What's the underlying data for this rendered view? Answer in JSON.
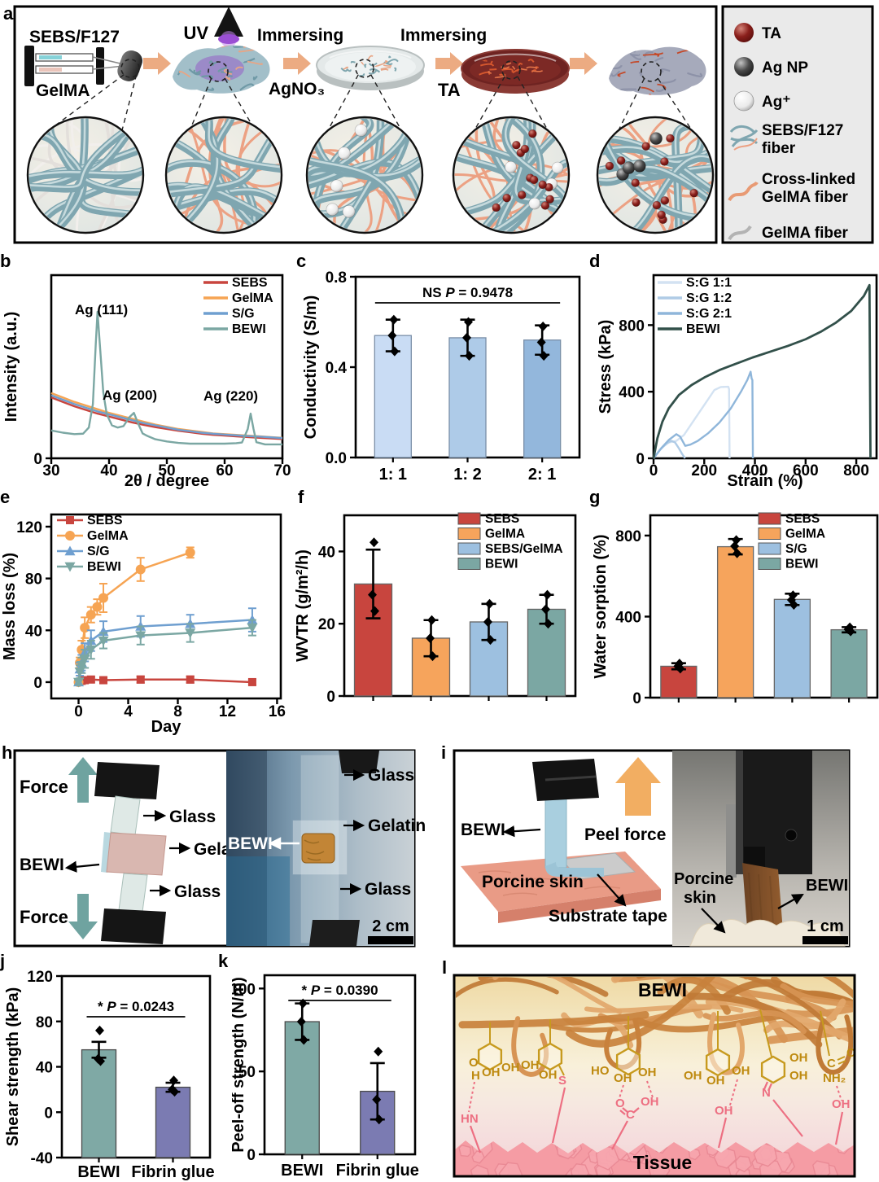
{
  "figure_labels": {
    "a": "a",
    "b": "b",
    "c": "c",
    "d": "d",
    "e": "e",
    "f": "f",
    "g": "g",
    "h": "h",
    "i": "i",
    "j": "j",
    "k": "k",
    "l": "l"
  },
  "panel_a": {
    "labels": {
      "sebs_f127": "SEBS/F127",
      "gelma": "GelMA",
      "uv": "UV",
      "immersing1": "Immersing",
      "agno3": "AgNO₃",
      "immersing2": "Immersing",
      "ta": "TA"
    },
    "legend": [
      {
        "line1": "TA",
        "line2": ""
      },
      {
        "line1": "Ag NP",
        "line2": ""
      },
      {
        "line1": "Ag⁺",
        "line2": ""
      },
      {
        "line1": "SEBS/F127",
        "line2": "fiber"
      },
      {
        "line1": "Cross-linked",
        "line2": "GelMA fiber"
      },
      {
        "line1": "GelMA fiber",
        "line2": ""
      }
    ]
  },
  "panel_h": {
    "force_top": "Force",
    "force_bottom": "Force",
    "glass_top": "Glass",
    "gelatin": "Gelatin",
    "bewi": "BEWI",
    "glass_bottom": "Glass",
    "photo": {
      "glass_top": "Glass",
      "gelatin": "Gelatin",
      "bewi": "BEWI",
      "glass_bottom": "Glass",
      "scale": "2 cm"
    }
  },
  "panel_i": {
    "bewi": "BEWI",
    "peel_force": "Peel force",
    "porcine_skin": "Porcine skin",
    "substrate_tape": "Substrate tape",
    "photo": {
      "porcine": "Porcine",
      "skin": "skin",
      "bewi": "BEWI",
      "scale": "1 cm"
    }
  },
  "panel_l": {
    "bewi": "BEWI",
    "tissue": "Tissue",
    "gold": {
      "g1o": "O",
      "g1h": "H",
      "g1oh1": "OH",
      "g1oh2": "OH",
      "g2oh1": "OH",
      "g2oh2": "OH",
      "g3ho": "HO",
      "g3oh1": "OH",
      "g3oh2": "OH",
      "g4oh1": "OH",
      "g4oh2": "OH",
      "g4oh3": "OH",
      "g5oh1": "OH",
      "g5oh2": "OH",
      "g6c": "C",
      "g6o": "O",
      "g6nh2": "NH₂"
    },
    "pink": {
      "p1": "HN",
      "p2": "S",
      "p3o": "O",
      "p3c": "C",
      "p3oh": "OH",
      "p4": "OH",
      "p5": "N",
      "p6": "OH"
    }
  },
  "chart_data": [
    {
      "id": "b",
      "type": "line",
      "xlabel": "2θ / degree",
      "ylabel": "Intensity (a.u.)",
      "xlim": [
        30,
        70
      ],
      "ylim": [
        0,
        1.25
      ],
      "xticks": [
        30,
        40,
        50,
        60,
        70
      ],
      "yticks": [
        0
      ],
      "ytick_labels": [
        "0"
      ],
      "annotations": [
        {
          "text": "Ag (111)"
        },
        {
          "text": "Ag (200)"
        },
        {
          "text": "Ag (220)"
        }
      ],
      "series": [
        {
          "name": "SEBS",
          "color": "#C8453E",
          "x": [
            30,
            32,
            34,
            36,
            38,
            40,
            42,
            44,
            46,
            48,
            50,
            52,
            54,
            56,
            58,
            60,
            62,
            64,
            66,
            68,
            70
          ],
          "y": [
            0.415,
            0.385,
            0.355,
            0.33,
            0.305,
            0.285,
            0.265,
            0.245,
            0.228,
            0.213,
            0.2,
            0.188,
            0.178,
            0.168,
            0.16,
            0.155,
            0.15,
            0.145,
            0.14,
            0.136,
            0.132
          ]
        },
        {
          "name": "GelMA",
          "color": "#F6A453",
          "x": [
            30,
            32,
            34,
            36,
            38,
            40,
            42,
            44,
            46,
            48,
            50,
            52,
            54,
            56,
            58,
            60,
            62,
            64,
            66,
            68,
            70
          ],
          "y": [
            0.445,
            0.415,
            0.385,
            0.36,
            0.335,
            0.31,
            0.29,
            0.27,
            0.25,
            0.23,
            0.215,
            0.2,
            0.19,
            0.18,
            0.17,
            0.165,
            0.16,
            0.155,
            0.15,
            0.145,
            0.14
          ]
        },
        {
          "name": "S/G",
          "color": "#6F9FD0",
          "x": [
            30,
            32,
            34,
            36,
            38,
            40,
            42,
            44,
            46,
            48,
            50,
            52,
            54,
            56,
            58,
            60,
            62,
            64,
            66,
            68,
            70
          ],
          "y": [
            0.43,
            0.4,
            0.37,
            0.345,
            0.32,
            0.3,
            0.28,
            0.26,
            0.24,
            0.225,
            0.21,
            0.195,
            0.185,
            0.175,
            0.168,
            0.162,
            0.157,
            0.152,
            0.148,
            0.143,
            0.138
          ]
        },
        {
          "name": "BEWI",
          "color": "#7BA7A3",
          "x": [
            30,
            32,
            34,
            35.5,
            36.5,
            37.2,
            37.7,
            38,
            38.4,
            39,
            39.6,
            40.5,
            41.5,
            42.5,
            43.5,
            44.3,
            45,
            45.8,
            46.5,
            48,
            50,
            52,
            54,
            56,
            58,
            60,
            62,
            63,
            64,
            64.5,
            65,
            65.5,
            67,
            68.5,
            70
          ],
          "y": [
            0.19,
            0.175,
            0.165,
            0.168,
            0.21,
            0.37,
            0.78,
            1.0,
            0.78,
            0.45,
            0.3,
            0.225,
            0.21,
            0.22,
            0.28,
            0.31,
            0.24,
            0.17,
            0.155,
            0.13,
            0.115,
            0.105,
            0.1,
            0.1,
            0.1,
            0.1,
            0.103,
            0.108,
            0.2,
            0.305,
            0.2,
            0.11,
            0.095,
            0.095,
            0.095
          ]
        }
      ]
    },
    {
      "id": "c",
      "type": "bar",
      "ylabel": "Conductivity (S/m)",
      "ylim": [
        0,
        0.8
      ],
      "yticks": [
        0,
        0.4,
        0.8
      ],
      "ytick_labels": [
        "0.0",
        "0.4",
        "0.8"
      ],
      "categories": [
        "1: 1",
        "1: 2",
        "2: 1"
      ],
      "values": [
        0.54,
        0.53,
        0.52
      ],
      "errors": [
        0.07,
        0.08,
        0.065
      ],
      "points": [
        [
          0.61,
          0.54,
          0.47
        ],
        [
          0.6,
          0.53,
          0.45
        ],
        [
          0.58,
          0.51,
          0.45
        ]
      ],
      "bar_colors": [
        "#C9DCF4",
        "#AECBE8",
        "#93B7DC"
      ],
      "sig": {
        "parts": [
          "NS  ",
          "P",
          " = 0.9478"
        ]
      }
    },
    {
      "id": "d",
      "type": "line",
      "xlabel": "Strain (%)",
      "ylabel": "Stress (kPa)",
      "xlim": [
        0,
        880
      ],
      "ylim": [
        0,
        1100
      ],
      "xticks": [
        0,
        200,
        400,
        600,
        800
      ],
      "yticks": [
        0,
        400,
        800
      ],
      "ytick_labels": [
        "0",
        "400",
        "800"
      ],
      "series": [
        {
          "name": "S:G 1:1",
          "color": "#D3E2F2",
          "x": [
            0,
            30,
            60,
            90,
            120,
            160,
            200,
            240,
            265,
            295,
            298,
            300
          ],
          "y": [
            0,
            60,
            95,
            105,
            140,
            230,
            320,
            410,
            428,
            430,
            415,
            0
          ]
        },
        {
          "name": "S:G 1:2",
          "color": "#AFCBE6",
          "x": [
            0,
            25,
            50,
            70,
            85,
            100,
            112,
            120,
            124
          ],
          "y": [
            0,
            50,
            88,
            105,
            95,
            60,
            28,
            10,
            0
          ]
        },
        {
          "name": "S:G 2:1",
          "color": "#8FB6DA",
          "x": [
            0,
            30,
            60,
            90,
            105,
            125,
            145,
            175,
            215,
            260,
            305,
            345,
            370,
            383,
            387,
            390,
            392
          ],
          "y": [
            0,
            60,
            110,
            145,
            130,
            75,
            82,
            105,
            150,
            215,
            300,
            400,
            470,
            520,
            480,
            470,
            0
          ]
        },
        {
          "name": "BEWI",
          "color": "#32504A",
          "x": [
            0,
            15,
            35,
            60,
            100,
            150,
            200,
            260,
            320,
            390,
            460,
            530,
            600,
            660,
            720,
            780,
            830,
            852,
            856
          ],
          "y": [
            0,
            120,
            220,
            300,
            380,
            440,
            485,
            530,
            565,
            605,
            640,
            675,
            715,
            760,
            815,
            885,
            975,
            1040,
            0
          ]
        }
      ]
    },
    {
      "id": "e",
      "type": "line-markers",
      "xlabel": "Day",
      "ylabel": "Mass loss (%)",
      "xlim": [
        -2.2,
        16.3
      ],
      "ylim": [
        -12.6,
        129.4
      ],
      "xticks": [
        0,
        4,
        8,
        12,
        16
      ],
      "yticks": [
        0,
        40,
        80,
        120
      ],
      "ytick_labels": [
        "0",
        "40",
        "80",
        "120"
      ],
      "series": [
        {
          "name": "SEBS",
          "color": "#C8453E",
          "marker": "square",
          "x": [
            0,
            0.25,
            0.5,
            1,
            2,
            5,
            9,
            14
          ],
          "y": [
            0,
            1,
            1.5,
            2,
            1.5,
            2,
            2,
            0
          ],
          "err": [
            1,
            1.5,
            2,
            2,
            2,
            2.5,
            2.5,
            2
          ]
        },
        {
          "name": "GelMA",
          "color": "#F6A453",
          "marker": "circle",
          "x": [
            0,
            0.1,
            0.25,
            0.5,
            1,
            1.5,
            2,
            5,
            9
          ],
          "y": [
            0,
            15,
            25,
            42,
            52,
            58,
            65,
            87,
            100
          ],
          "err": [
            2,
            4,
            7,
            8,
            6,
            6,
            11,
            9,
            4
          ]
        },
        {
          "name": "S/G",
          "color": "#6F9FD0",
          "marker": "triangle-up",
          "x": [
            0,
            0.1,
            0.25,
            0.5,
            1,
            2,
            5,
            9,
            14
          ],
          "y": [
            0,
            10,
            15,
            23,
            32,
            39,
            43,
            45,
            48
          ],
          "err": [
            2,
            5,
            6,
            7,
            8,
            8,
            8,
            7,
            9
          ]
        },
        {
          "name": "BEWI",
          "color": "#7BA7A3",
          "marker": "triangle-down",
          "x": [
            0,
            0.1,
            0.25,
            0.5,
            1,
            2,
            5,
            9,
            14
          ],
          "y": [
            0,
            8,
            13,
            18,
            25,
            32,
            36,
            38,
            42
          ],
          "err": [
            2,
            5,
            6,
            7,
            7,
            6,
            7,
            7,
            6
          ]
        }
      ]
    },
    {
      "id": "f",
      "type": "bar",
      "ylabel": "WVTR (g/m²/h)",
      "ylim": [
        0,
        50
      ],
      "yticks": [
        0,
        20,
        40
      ],
      "ytick_labels": [
        "0",
        "20",
        "40"
      ],
      "legend": [
        "SEBS",
        "GelMA",
        "SEBS/GelMA",
        "BEWI"
      ],
      "values": [
        31,
        16,
        20.5,
        24
      ],
      "errors": [
        9.5,
        5,
        5,
        4
      ],
      "points": [
        [
          42.5,
          28,
          23.5
        ],
        [
          21,
          16,
          11
        ],
        [
          25.5,
          20.5,
          15.5
        ],
        [
          28,
          24,
          20
        ]
      ],
      "bar_colors": [
        "#C8453E",
        "#F6A45C",
        "#9DC0E0",
        "#7BA7A3"
      ]
    },
    {
      "id": "g",
      "type": "bar",
      "ylabel": "Water sorption (%)",
      "ylim": [
        0,
        900
      ],
      "yticks": [
        0,
        400,
        800
      ],
      "ytick_labels": [
        "0",
        "400",
        "800"
      ],
      "legend": [
        "SEBS",
        "GelMA",
        "S/G",
        "BEWI"
      ],
      "values": [
        155,
        745,
        485,
        335
      ],
      "errors": [
        15,
        38,
        28,
        13
      ],
      "points": [
        [
          168,
          155,
          143
        ],
        [
          778,
          748,
          712
        ],
        [
          505,
          482,
          458
        ],
        [
          347,
          337,
          327
        ]
      ],
      "bar_colors": [
        "#C8453E",
        "#F6A45C",
        "#9DC0E0",
        "#7BA7A3"
      ]
    },
    {
      "id": "j",
      "type": "bar",
      "ylabel": "Shear strength (kPa)",
      "ylim": [
        -40,
        120
      ],
      "yticks": [
        -40,
        0,
        40,
        80,
        120
      ],
      "ytick_labels": [
        "-40",
        "0",
        "40",
        "80",
        "120"
      ],
      "categories": [
        "BEWI",
        "Fibrin glue"
      ],
      "values": [
        55,
        22
      ],
      "errors": [
        7,
        4
      ],
      "points": [
        [
          72,
          47,
          45
        ],
        [
          28,
          20,
          18
        ]
      ],
      "bar_colors": [
        "#7FA9A5",
        "#7B7BB2"
      ],
      "sig": {
        "parts": [
          "* ",
          "P",
          " = 0.0243"
        ]
      }
    },
    {
      "id": "k",
      "type": "bar",
      "ylabel": "Peel-off strength (N/m)",
      "ylim": [
        0,
        108
      ],
      "yticks": [
        0,
        50,
        100
      ],
      "ytick_labels": [
        "0",
        "50",
        "100"
      ],
      "categories": [
        "BEWI",
        "Fibrin glue"
      ],
      "values": [
        80,
        38
      ],
      "errors": [
        11,
        17
      ],
      "points": [
        [
          91,
          80,
          69
        ],
        [
          62,
          33,
          21
        ]
      ],
      "bar_colors": [
        "#7FA9A5",
        "#7B7BB2"
      ],
      "sig": {
        "parts": [
          "* ",
          "P",
          " = 0.0390"
        ]
      }
    }
  ]
}
